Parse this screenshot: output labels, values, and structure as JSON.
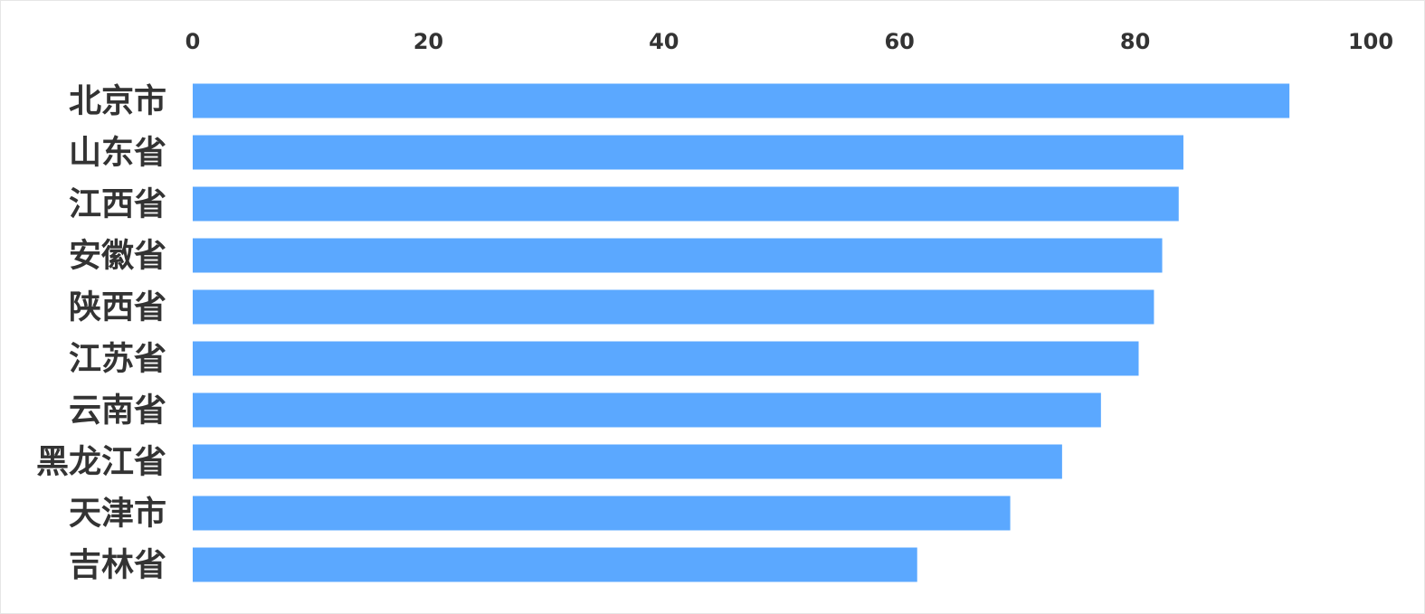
{
  "chart_data": {
    "type": "bar",
    "orientation": "horizontal",
    "categories": [
      "北京市",
      "山东省",
      "江西省",
      "安徽省",
      "陕西省",
      "江苏省",
      "云南省",
      "黑龙江省",
      "天津市",
      "吉林省"
    ],
    "values": [
      93.1,
      84.1,
      83.7,
      82.3,
      81.6,
      80.3,
      77.1,
      73.8,
      69.4,
      61.5
    ],
    "color": "#5ba8ff",
    "xlim": [
      0,
      100
    ],
    "xticks": [
      0,
      20,
      40,
      60,
      80,
      100
    ],
    "grid": false
  }
}
